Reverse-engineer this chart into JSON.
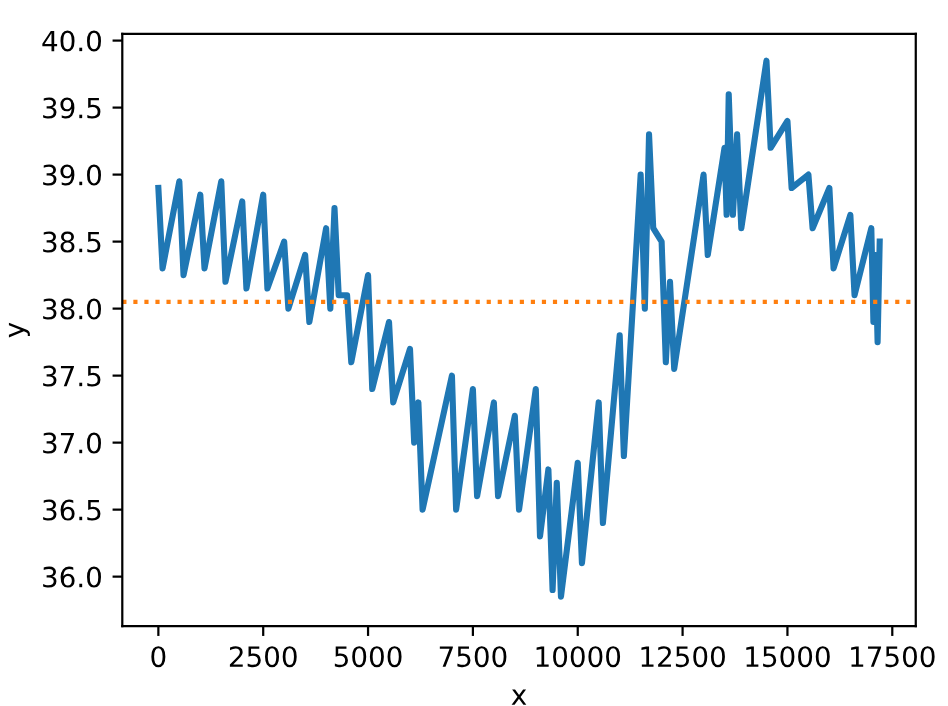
{
  "chart_data": {
    "type": "line",
    "xlabel": "x",
    "ylabel": "y",
    "xlim": [
      -860,
      18060
    ],
    "ylim": [
      35.63,
      40.05
    ],
    "xticks": [
      0,
      2500,
      5000,
      7500,
      10000,
      12500,
      15000,
      17500
    ],
    "yticks": [
      {
        "value": 36.0,
        "label": "36.0"
      },
      {
        "value": 36.5,
        "label": "36.5"
      },
      {
        "value": 37.0,
        "label": "37.0"
      },
      {
        "value": 37.5,
        "label": "37.5"
      },
      {
        "value": 38.0,
        "label": "38.0"
      },
      {
        "value": 38.5,
        "label": "38.5"
      },
      {
        "value": 39.0,
        "label": "39.0"
      },
      {
        "value": 39.5,
        "label": "39.5"
      },
      {
        "value": 40.0,
        "label": "40.0"
      }
    ],
    "grid": false,
    "legend": false,
    "marker": "none",
    "line_style": "solid",
    "series": [
      {
        "color": "#1f77b4",
        "x": [
          0,
          100,
          500,
          600,
          1000,
          1100,
          1500,
          1600,
          2000,
          2100,
          2500,
          2600,
          3000,
          3100,
          3500,
          3600,
          4000,
          4100,
          4200,
          4300,
          4500,
          4600,
          5000,
          5100,
          5500,
          5600,
          6000,
          6100,
          6200,
          6300,
          7000,
          7100,
          7500,
          7600,
          8000,
          8100,
          8500,
          8600,
          9000,
          9100,
          9300,
          9400,
          9500,
          9600,
          10000,
          10100,
          10500,
          10600,
          11000,
          11100,
          11500,
          11600,
          11700,
          11800,
          12000,
          12100,
          12200,
          12300,
          13000,
          13100,
          13500,
          13550,
          13600,
          13700,
          13800,
          13900,
          14500,
          14600,
          15000,
          15100,
          15500,
          15600,
          16000,
          16100,
          16500,
          16600,
          17000,
          17050,
          17100,
          17150,
          17200
        ],
        "values": [
          38.9,
          38.3,
          38.95,
          38.25,
          38.85,
          38.3,
          38.95,
          38.2,
          38.8,
          38.15,
          38.85,
          38.15,
          38.5,
          38.0,
          38.4,
          37.9,
          38.6,
          38.0,
          38.75,
          38.1,
          38.1,
          37.6,
          38.25,
          37.4,
          37.9,
          37.3,
          37.7,
          37.0,
          37.3,
          36.5,
          37.5,
          36.5,
          37.4,
          36.6,
          37.3,
          36.6,
          37.2,
          36.5,
          37.4,
          36.3,
          36.8,
          35.9,
          36.7,
          35.85,
          36.85,
          36.1,
          37.3,
          36.4,
          37.8,
          36.9,
          39.0,
          38.0,
          39.3,
          38.6,
          38.5,
          37.6,
          38.2,
          37.55,
          39.0,
          38.4,
          39.2,
          38.7,
          39.6,
          38.7,
          39.3,
          38.6,
          39.85,
          39.2,
          39.4,
          38.9,
          39.0,
          38.6,
          38.9,
          38.3,
          38.7,
          38.1,
          38.6,
          37.9,
          38.4,
          37.75,
          38.5
        ]
      }
    ],
    "ref_lines": [
      {
        "axis": "y",
        "value": 38.05,
        "color": "#ff7f0e",
        "line_style": "dotted"
      }
    ]
  }
}
